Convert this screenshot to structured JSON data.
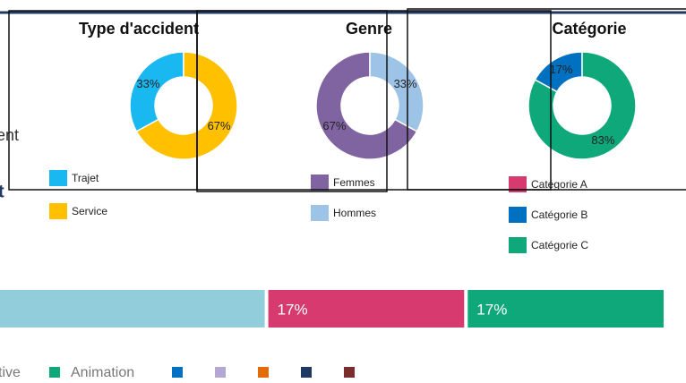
{
  "fragments": [
    "ent",
    "t"
  ],
  "chart_data": [
    {
      "type": "pie",
      "donut": true,
      "title": "Type d'accident",
      "categories": [
        "Trajet",
        "Service"
      ],
      "values": [
        33,
        67
      ],
      "value_labels": [
        "33%",
        "67%"
      ],
      "colors": [
        "#1ab8f0",
        "#ffc000"
      ]
    },
    {
      "type": "pie",
      "donut": true,
      "title": "Genre",
      "categories": [
        "Femmes",
        "Hommes"
      ],
      "values": [
        67,
        33
      ],
      "value_labels": [
        "67%",
        "33%"
      ],
      "colors": [
        "#8064a2",
        "#9dc3e6"
      ]
    },
    {
      "type": "pie",
      "donut": true,
      "title": "Catégorie",
      "categories": [
        "Catégorie A",
        "Catégorie B",
        "Catégorie C"
      ],
      "values": [
        0,
        17,
        83
      ],
      "value_labels": [
        "0%",
        "17%",
        "83%"
      ],
      "colors": [
        "#d63a6e",
        "#0070c0",
        "#0fa87a"
      ]
    },
    {
      "type": "stacked-bar",
      "orientation": "horizontal",
      "xlim": [
        0,
        100
      ],
      "values": [
        66,
        17,
        17
      ],
      "value_labels": [
        null,
        "17%",
        "17%"
      ],
      "colors": [
        "#92cddc",
        "#d63a6e",
        "#0fa87a"
      ],
      "legend": [
        {
          "name": "tive",
          "color": null
        },
        {
          "name": "Animation",
          "color": "#0fa87a"
        },
        {
          "name": null,
          "color": "#0070c0"
        },
        {
          "name": null,
          "color": "#b4a7d6"
        },
        {
          "name": null,
          "color": "#e36c09"
        },
        {
          "name": null,
          "color": "#1f3864"
        },
        {
          "name": null,
          "color": "#7b2c2c"
        }
      ]
    }
  ]
}
